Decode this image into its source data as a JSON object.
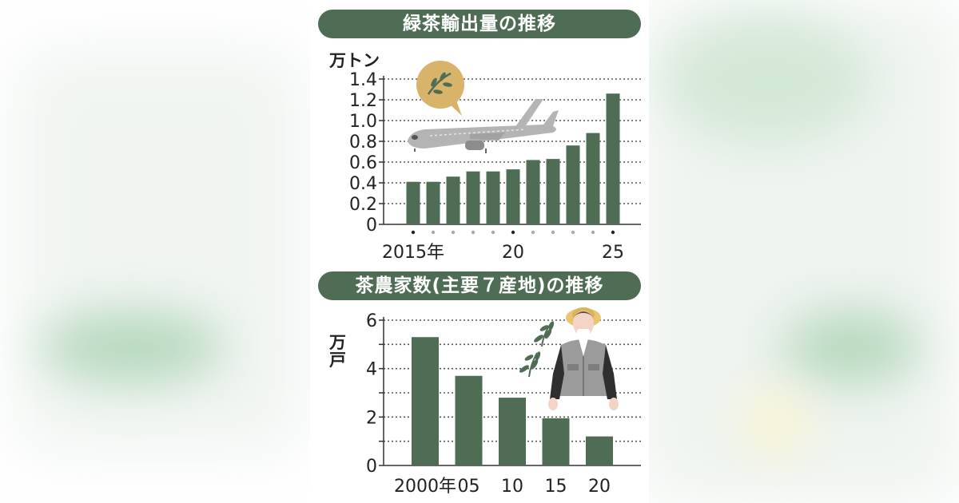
{
  "chart_data": [
    {
      "type": "bar",
      "title": "緑茶輸出量の推移",
      "unit": "万トン",
      "x": [
        2015,
        2016,
        2017,
        2018,
        2019,
        2020,
        2021,
        2022,
        2023,
        2024,
        2025
      ],
      "x_tick_labels": [
        "2015年",
        "20",
        "25"
      ],
      "x_tick_values": [
        2015,
        2020,
        2025
      ],
      "values": [
        0.41,
        0.41,
        0.46,
        0.51,
        0.51,
        0.53,
        0.62,
        0.63,
        0.76,
        0.88,
        1.26
      ],
      "ylim": [
        0,
        1.4
      ],
      "y_ticks": [
        "0",
        "0.2",
        "0.4",
        "0.6",
        "0.8",
        "1.0",
        "1.2",
        "1.4"
      ],
      "y_tick_values": [
        0,
        0.2,
        0.4,
        0.6,
        0.8,
        1.0,
        1.2,
        1.4
      ],
      "grid": true,
      "bar_color": "#4f6d55"
    },
    {
      "type": "bar",
      "title": "茶農家数(主要７産地)の推移",
      "unit": "万戸",
      "x": [
        2000,
        2005,
        2010,
        2015,
        2020
      ],
      "x_tick_labels": [
        "2000年",
        "05",
        "10",
        "15",
        "20"
      ],
      "values": [
        5.3,
        3.7,
        2.8,
        1.95,
        1.2
      ],
      "ylim": [
        0,
        6
      ],
      "y_ticks": [
        "0",
        "2",
        "4",
        "6"
      ],
      "y_tick_values": [
        0,
        2,
        4,
        6
      ],
      "grid": true,
      "bar_color": "#4f6d55"
    }
  ],
  "colors": {
    "accent": "#4f6d55",
    "speech_bubble": "#d8b46a",
    "airplane": "#b4b4b4",
    "jacket": "#9b9b9b",
    "hat": "#e8c56e"
  },
  "icons": {
    "airplane": "airplane-icon",
    "tea_bubble": "tea-leaf-speech-bubble-icon",
    "farmer": "tea-farmer-illustration",
    "sprouts": "tea-sprout-icon"
  }
}
